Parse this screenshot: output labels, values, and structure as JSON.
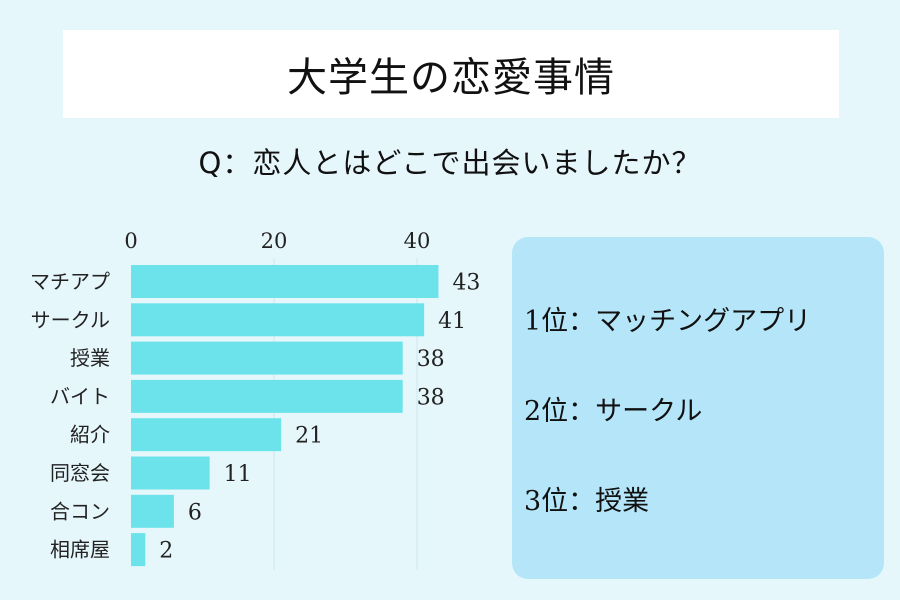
{
  "title": "大学生の恋愛事情",
  "question": "Q：恋人とはどこで出会いましたか？",
  "ranking": [
    {
      "text": "1位：マッチングアプリ"
    },
    {
      "text": "2位：サークル"
    },
    {
      "text": "3位：授業"
    }
  ],
  "colors": {
    "background": "#e6f7fc",
    "bar": "#6ce3ea",
    "panel": "#b5e5f9",
    "title_box": "#ffffff",
    "grid": "#cfe6ee"
  },
  "chart_data": {
    "type": "bar",
    "orientation": "horizontal",
    "categories": [
      "マチアプ",
      "サークル",
      "授業",
      "バイト",
      "紹介",
      "同窓会",
      "合コン",
      "相席屋"
    ],
    "values": [
      43,
      41,
      38,
      38,
      21,
      11,
      6,
      2
    ],
    "xticks": [
      0,
      20,
      40
    ],
    "xlim": [
      0,
      43
    ],
    "axis_position": "top",
    "grid": true
  }
}
